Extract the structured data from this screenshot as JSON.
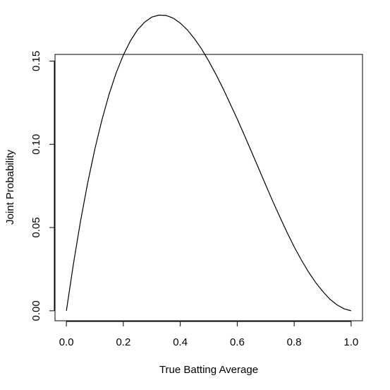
{
  "chart_data": {
    "type": "line",
    "title": "",
    "xlabel": "True Batting Average",
    "ylabel": "Joint Probability",
    "xlim": [
      -0.04,
      1.04
    ],
    "ylim": [
      -0.006,
      0.154
    ],
    "x_ticks": [
      0.0,
      0.2,
      0.4,
      0.6,
      0.8,
      1.0
    ],
    "x_tick_labels": [
      "0.0",
      "0.2",
      "0.4",
      "0.6",
      "0.8",
      "1.0"
    ],
    "y_ticks": [
      0.0,
      0.05,
      0.1,
      0.15
    ],
    "y_tick_labels": [
      "0.00",
      "0.05",
      "0.10",
      "0.15"
    ],
    "grid": false,
    "legend": "none",
    "series": [
      {
        "color": "#000000",
        "x": [
          0.0,
          0.025,
          0.05,
          0.075,
          0.1,
          0.125,
          0.15,
          0.175,
          0.2,
          0.225,
          0.25,
          0.275,
          0.3,
          0.325,
          0.35,
          0.375,
          0.4,
          0.425,
          0.45,
          0.475,
          0.5,
          0.525,
          0.55,
          0.575,
          0.6,
          0.625,
          0.65,
          0.675,
          0.7,
          0.725,
          0.75,
          0.775,
          0.8,
          0.825,
          0.85,
          0.875,
          0.9,
          0.925,
          0.95,
          0.975,
          1.0
        ],
        "y": [
          0.0,
          0.0285,
          0.0542,
          0.077,
          0.0972,
          0.1148,
          0.1301,
          0.143,
          0.1536,
          0.1622,
          0.1688,
          0.1734,
          0.1764,
          0.1776,
          0.1774,
          0.1758,
          0.1728,
          0.1687,
          0.1634,
          0.1572,
          0.15,
          0.1421,
          0.1336,
          0.1244,
          0.1152,
          0.1055,
          0.0956,
          0.0856,
          0.0756,
          0.0657,
          0.0563,
          0.0471,
          0.0384,
          0.0306,
          0.0234,
          0.0171,
          0.0117,
          0.007,
          0.0036,
          0.0012,
          0.0
        ]
      }
    ]
  }
}
